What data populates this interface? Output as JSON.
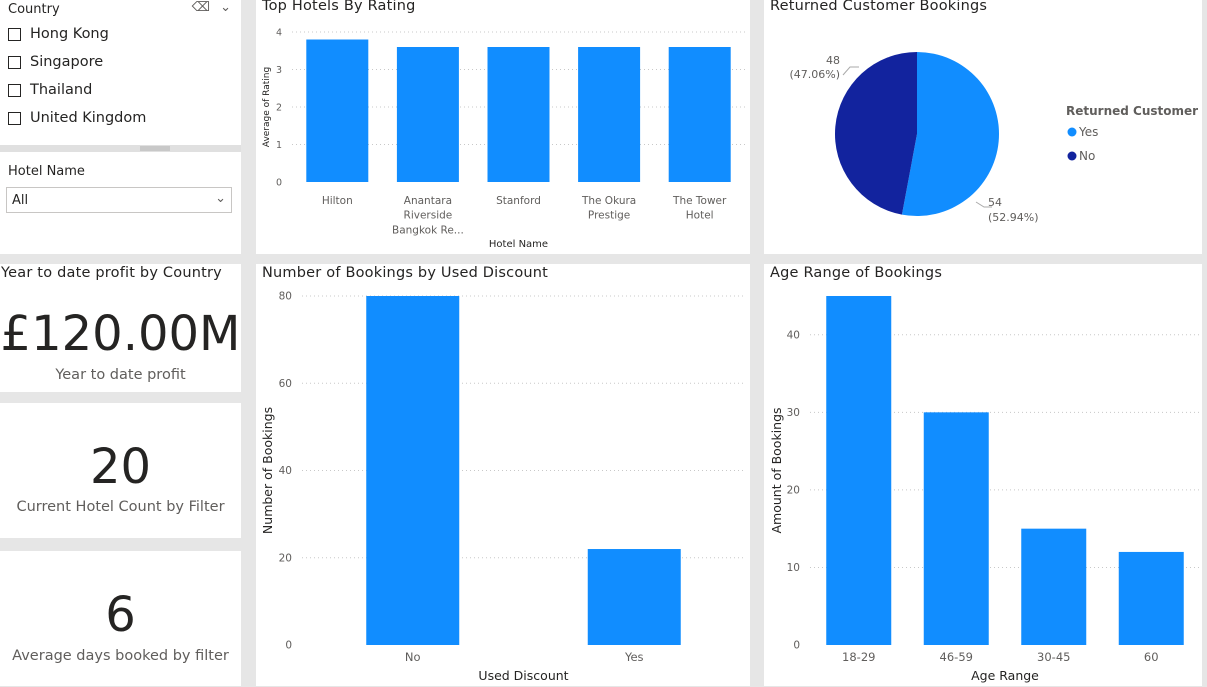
{
  "country_slicer": {
    "header": "Country",
    "items": [
      {
        "label": "Hong Kong"
      },
      {
        "label": "Singapore"
      },
      {
        "label": "Thailand"
      },
      {
        "label": "United Kingdom"
      }
    ]
  },
  "hotel_slicer": {
    "header": "Hotel Name",
    "value": "All"
  },
  "kpis": {
    "profit": {
      "title": "Year to date profit by Country",
      "value": "£120.00M",
      "label": "Year to date profit"
    },
    "hotel_count": {
      "value": "20",
      "label": "Current Hotel Count by Filter"
    },
    "avg_days": {
      "value": "6",
      "label": "Average days booked by filter"
    }
  },
  "colors": {
    "bar": "#118dff",
    "dark": "#12239e"
  },
  "chart_data": [
    {
      "id": "top_hotels",
      "type": "bar",
      "title": "Top Hotels By Rating",
      "xlabel": "Hotel Name",
      "ylabel": "Average of Rating",
      "categories": [
        [
          "Hilton"
        ],
        [
          "Anantara",
          "Riverside",
          "Bangkok Re..."
        ],
        [
          "Stanford"
        ],
        [
          "The Okura",
          "Prestige"
        ],
        [
          "The Tower",
          "Hotel"
        ]
      ],
      "values": [
        3.8,
        3.6,
        3.6,
        3.6,
        3.6
      ],
      "ylim": [
        0,
        4
      ],
      "yticks": [
        0,
        1,
        2,
        3,
        4
      ],
      "grid": true
    },
    {
      "id": "returned",
      "type": "pie",
      "title": "Returned Customer Bookings",
      "legend_title": "Returned Customer",
      "legend_position": "right",
      "slices": [
        {
          "name": "Yes",
          "value": 54,
          "label_value": "54",
          "label_pct": "(52.94%)",
          "color": "#118dff"
        },
        {
          "name": "No",
          "value": 48,
          "label_value": "48",
          "label_pct": "(47.06%)",
          "color": "#12239e"
        }
      ]
    },
    {
      "id": "used_discount",
      "type": "bar",
      "title": "Number of Bookings by Used Discount",
      "xlabel": "Used Discount",
      "ylabel": "Number of Bookings",
      "categories": [
        [
          "No"
        ],
        [
          "Yes"
        ]
      ],
      "values": [
        80,
        22
      ],
      "ylim": [
        0,
        80
      ],
      "yticks": [
        0,
        20,
        40,
        60,
        80
      ],
      "grid": true
    },
    {
      "id": "age_range",
      "type": "bar",
      "title": "Age Range of Bookings",
      "xlabel": "Age Range",
      "ylabel": "Amount of Bookings",
      "categories": [
        [
          "18-29"
        ],
        [
          "46-59"
        ],
        [
          "30-45"
        ],
        [
          "60"
        ]
      ],
      "values": [
        45,
        30,
        15,
        12
      ],
      "ylim": [
        0,
        45
      ],
      "yticks": [
        0,
        10,
        20,
        30,
        40
      ],
      "grid": true
    }
  ]
}
